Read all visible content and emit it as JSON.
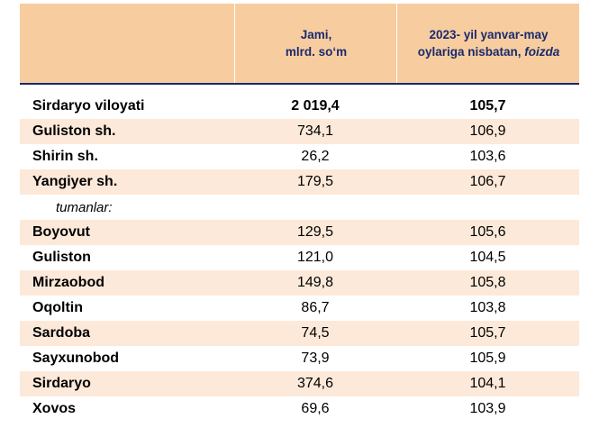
{
  "header": {
    "col0": "",
    "col1_line1": "Jami,",
    "col1_line2": "mlrd. so‘m",
    "col2_line1": "2023- yil yanvar-may",
    "col2_line2": "oylariga nisbatan, ",
    "col2_italic": "foizda"
  },
  "rows": [
    {
      "name": "Sirdaryo viloyati",
      "v1": "2 019,4",
      "v2": "105,7"
    },
    {
      "name": "Guliston  sh.",
      "v1": "734,1",
      "v2": "106,9"
    },
    {
      "name": "Shirin sh.",
      "v1": "26,2",
      "v2": "103,6"
    },
    {
      "name": "Yangiyer sh.",
      "v1": "179,5",
      "v2": "106,7"
    },
    {
      "name": "tumanlar:",
      "v1": "",
      "v2": ""
    },
    {
      "name": "Boyovut",
      "v1": "129,5",
      "v2": "105,6"
    },
    {
      "name": "Guliston",
      "v1": "121,0",
      "v2": "104,5"
    },
    {
      "name": "Mirzaobod",
      "v1": "149,8",
      "v2": "105,8"
    },
    {
      "name": "Oqoltin",
      "v1": "86,7",
      "v2": "103,8"
    },
    {
      "name": "Sardoba",
      "v1": "74,5",
      "v2": "105,7"
    },
    {
      "name": "Sayxunobod",
      "v1": "73,9",
      "v2": "105,9"
    },
    {
      "name": "Sirdaryo",
      "v1": "374,6",
      "v2": "104,1"
    },
    {
      "name": "Xovos",
      "v1": "69,6",
      "v2": "103,9"
    }
  ]
}
